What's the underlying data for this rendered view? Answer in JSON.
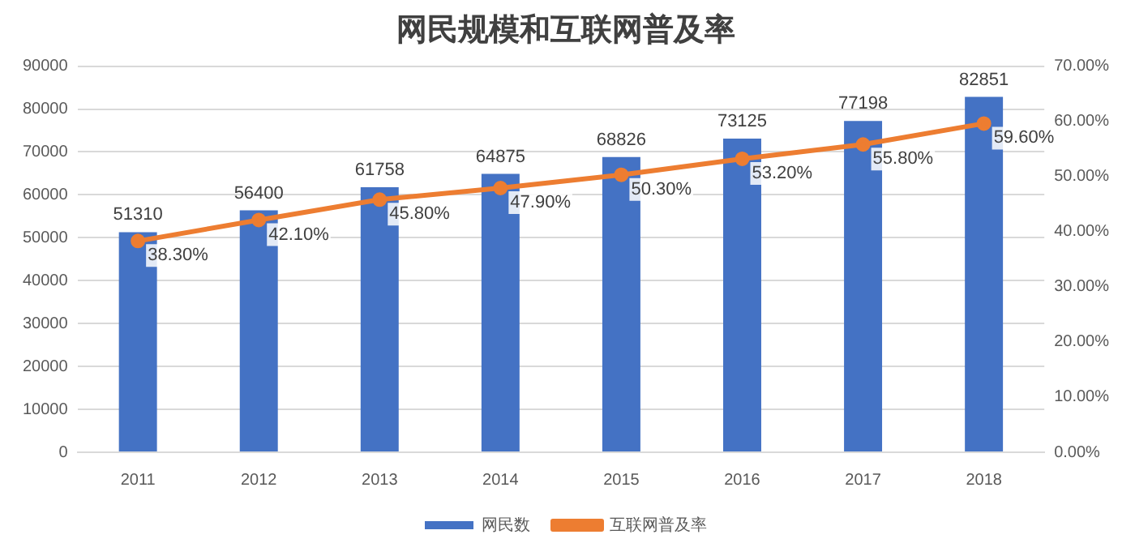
{
  "chart_data": {
    "type": "bar",
    "title": "网民规模和互联网普及率",
    "categories": [
      "2011",
      "2012",
      "2013",
      "2014",
      "2015",
      "2016",
      "2017",
      "2018"
    ],
    "series": [
      {
        "name": "网民数",
        "color": "#4472c4",
        "values": [
          51310,
          56400,
          61758,
          64875,
          68826,
          73125,
          77198,
          82851
        ],
        "value_labels": [
          "51310",
          "56400",
          "61758",
          "64875",
          "68826",
          "73125",
          "77198",
          "82851"
        ]
      },
      {
        "name": "互联网普及率",
        "type": "line",
        "axis": "y2",
        "color": "#ed7d31",
        "values": [
          38.3,
          42.1,
          45.8,
          47.9,
          50.3,
          53.2,
          55.8,
          59.6
        ],
        "value_labels": [
          "38.30%",
          "42.10%",
          "45.80%",
          "47.90%",
          "50.30%",
          "53.20%",
          "55.80%",
          "59.60%"
        ]
      }
    ],
    "ylim": [
      0,
      90000
    ],
    "yticks": [
      0,
      10000,
      20000,
      30000,
      40000,
      50000,
      60000,
      70000,
      80000,
      90000
    ],
    "y2lim": [
      0,
      70
    ],
    "y2ticks": [
      {
        "value": 0,
        "label": "0.00%"
      },
      {
        "value": 10,
        "label": "10.00%"
      },
      {
        "value": 20,
        "label": "20.00%"
      },
      {
        "value": 30,
        "label": "30.00%"
      },
      {
        "value": 40,
        "label": "40.00%"
      },
      {
        "value": 50,
        "label": "50.00%"
      },
      {
        "value": 60,
        "label": "60.00%"
      },
      {
        "value": 70,
        "label": "70.00%"
      }
    ],
    "grid": "y",
    "legend": "bottom",
    "marker": "circle",
    "line_style": "solid"
  }
}
